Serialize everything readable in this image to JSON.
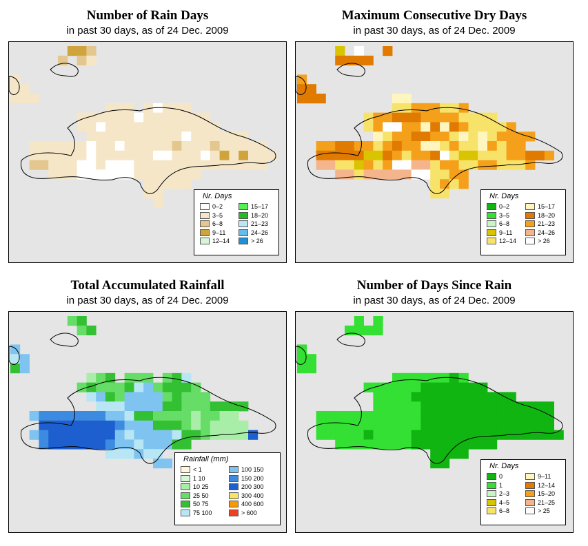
{
  "panels": [
    {
      "title": "Number of Rain Days",
      "subtitle": "in past 30 days, as of  24 Dec. 2009",
      "legend_title": "Nr. Days",
      "legend": [
        {
          "label": "0–2",
          "color": "#ffffff"
        },
        {
          "label": "3–5",
          "color": "#f5e6c8"
        },
        {
          "label": "6–8",
          "color": "#e3c78e"
        },
        {
          "label": "9–11",
          "color": "#cfa43d"
        },
        {
          "label": "12–14",
          "color": "#d6f5d6"
        },
        {
          "label": "15–17",
          "color": "#55f055"
        },
        {
          "label": "18–20",
          "color": "#22bb22"
        },
        {
          "label": "21–23",
          "color": "#bde6f5"
        },
        {
          "label": "24–26",
          "color": "#66bbee"
        },
        {
          "label": "> 26",
          "color": "#1f8fd6"
        }
      ],
      "palette": [
        "#ffffff",
        "#f5e6c8",
        "#e3c78e",
        "#cfa43d"
      ],
      "grid": [
        "......332.....................",
        ".....2.21.....................",
        "..............................",
        "1.............................",
        "11............................",
        "111...........................",
        "..........111.10111...........",
        ".......11111101111111.........",
        ".......110111111111111........",
        "........11111111110111111.....",
        "..1111110110111112111211111...",
        "..11111101111110011101313111..",
        "..2211100100011111111111111...",
        "....1110000001111111..........",
        "..............11111...........",
        "..............11..............",
        "...............1.............."
      ]
    },
    {
      "title": "Maximum Consecutive Dry Days",
      "subtitle": "in past 30 days, as of  24 Dec. 2009",
      "legend_title": "Nr. Days",
      "legend": [
        {
          "label": "0–2",
          "color": "#11b511"
        },
        {
          "label": "3–5",
          "color": "#33e033"
        },
        {
          "label": "6–8",
          "color": "#c8f5c8"
        },
        {
          "label": "9–11",
          "color": "#d8c400"
        },
        {
          "label": "12–14",
          "color": "#f8e36a"
        },
        {
          "label": "15–17",
          "color": "#fff6bf"
        },
        {
          "label": "18–20",
          "color": "#e07a00"
        },
        {
          "label": "21–23",
          "color": "#f5a01a"
        },
        {
          "label": "24–26",
          "color": "#f5b58c"
        },
        {
          "label": "> 26",
          "color": "#ffffff"
        }
      ],
      "palette": [
        "#ffffff",
        "#fff6bf",
        "#f8e36a",
        "#f5a01a",
        "#e07a00",
        "#f5b58c",
        "#d8c400"
      ],
      "grid": [
        "....6.0..4....................",
        "....4444......................",
        "..............................",
        "3.............................",
        "44............................",
        "444.......11..................",
        "..........22333223............",
        ".......23344433332222.........",
        ".......2300331414322223.......",
        "........12334433212123333.....",
        "..3344332343311232213233......",
        "..4444466432334026622233443...",
        "..55226323005523322332223.....",
        "....55255555002233............",
        "..............2323............",
        "..............22.............."
      ]
    },
    {
      "title": "Total Accumulated Rainfall",
      "subtitle": "in past 30 days, as of  24 Dec. 2009",
      "legend_title": "Rainfall (mm)",
      "legend": [
        {
          "lo": "< 1",
          "hi": "",
          "color": "#fff6dc"
        },
        {
          "lo": "1",
          "hi": "10",
          "color": "#d6f5d6"
        },
        {
          "lo": "10",
          "hi": "25",
          "color": "#a8eea8"
        },
        {
          "lo": "25",
          "hi": "50",
          "color": "#66dd66"
        },
        {
          "lo": "50",
          "hi": "75",
          "color": "#33c033"
        },
        {
          "lo": "75",
          "hi": "100",
          "color": "#b9e6f5"
        },
        {
          "lo": "100",
          "hi": "150",
          "color": "#7fc4f0"
        },
        {
          "lo": "150",
          "hi": "200",
          "color": "#3d8be0"
        },
        {
          "lo": "200",
          "hi": "300",
          "color": "#1e5fd0"
        },
        {
          "lo": "300",
          "hi": "400",
          "color": "#f5e36a"
        },
        {
          "lo": "400",
          "hi": "600",
          "color": "#f59a00"
        },
        {
          "lo": "> 600",
          "hi": "",
          "color": "#f04020"
        }
      ],
      "palette": [
        "#a8eea8",
        "#66dd66",
        "#33c033",
        "#b9e6f5",
        "#7fc4f0",
        "#3d8be0",
        "#1e5fd0"
      ],
      "grid": [
        "......12.........................",
        ".......12........................",
        "...........................",
        "4..........................",
        "34.........................",
        "24.........................",
        "........012.111.123.........",
        ".......1211123412221........",
        "........3421444412111.......",
        ".........3334444221112222...",
        "..4555555544322111101100....",
        "...6666666654442221010000...",
        "..456666666434444322100006..",
        "...5666666544344422...........",
        "..........333433.............",
        "...............44............",
        "..............................."
      ]
    },
    {
      "title": "Number of Days Since Rain",
      "subtitle": "in past 30 days, as of  24 Dec. 2009",
      "legend_title": "Nr. Days",
      "legend": [
        {
          "label": "0",
          "color": "#11b511"
        },
        {
          "label": "1",
          "color": "#33e033"
        },
        {
          "label": "2–3",
          "color": "#c8f5c8"
        },
        {
          "label": "4–5",
          "color": "#d8c400"
        },
        {
          "label": "6–8",
          "color": "#f8e36a"
        },
        {
          "label": "9–11",
          "color": "#fff6bf"
        },
        {
          "label": "12–14",
          "color": "#e07a00"
        },
        {
          "label": "15–20",
          "color": "#f5a01a"
        },
        {
          "label": "21–25",
          "color": "#f5b58c"
        },
        {
          "label": "> 25",
          "color": "#ffffff"
        }
      ],
      "palette": [
        "#11b511",
        "#33e033"
      ],
      "grid": [
        "......1.1.....................",
        ".....1111.....................",
        "..............................",
        "1.............................",
        "11............................",
        "11............................",
        "..........11111101............",
        ".......1111110000000..........",
        "........111100000000000.......",
        "........1111100000000000000...",
        "..1111111111100000000000000...",
        "..1111111111100000000000000...",
        "..11111011110000000000000000..",
        "....11111111000000000.........",
        "..............0000............",
        "..............00..............",
        "..............................."
      ]
    }
  ]
}
